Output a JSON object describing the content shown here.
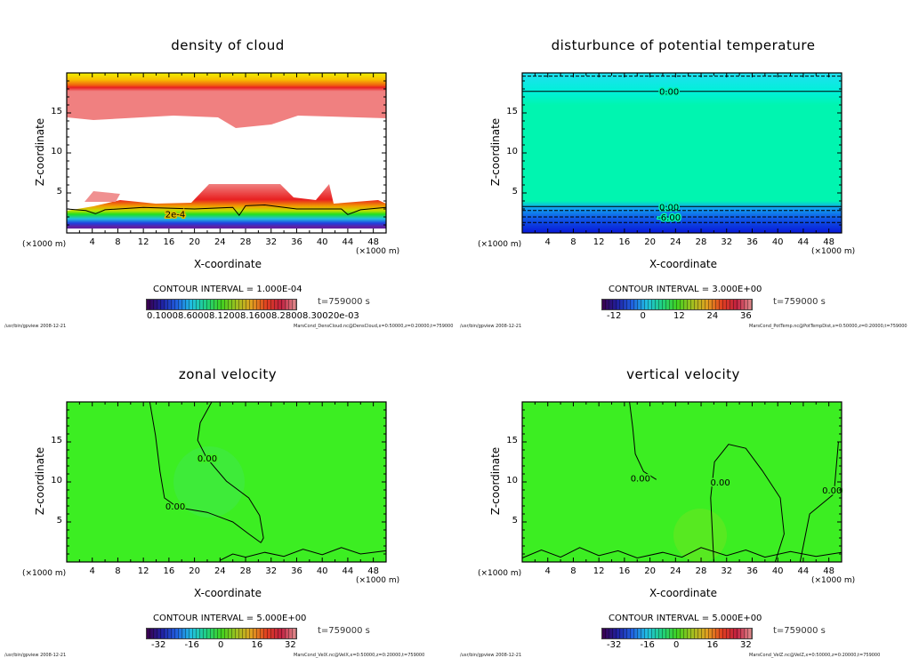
{
  "common": {
    "ylabel": "Z-coordinate",
    "xlabel": "X-coordinate",
    "xunit": "(×1000 m)",
    "time": "t=759000 s",
    "footer_left": "/usr/bin/gpview  2008-12-21",
    "xticks": [
      "4",
      "8",
      "12",
      "16",
      "20",
      "24",
      "28",
      "32",
      "36",
      "40",
      "44",
      "48"
    ],
    "yticks": [
      "5",
      "10",
      "15"
    ]
  },
  "chart_data": [
    {
      "type": "heatmap",
      "title": "density of cloud",
      "xlabel": "X-coordinate",
      "ylabel": "Z-coordinate",
      "xlim": [
        0,
        50
      ],
      "ylim": [
        0,
        20
      ],
      "contour_interval": "CONTOUR INTERVAL = 1.000E-04",
      "colorbar_labels": [
        "0.10008.60008.12008.16008.28008.30020e-03"
      ],
      "footer_right": "MarsCond_DensCloud.nc@DensCloud,x=0:50000,z=0:20000,t=759000",
      "contours": [
        {
          "label": "2e-4",
          "label_at": [
            17,
            2.4
          ],
          "points": [
            [
              0,
              3
            ],
            [
              3,
              2.8
            ],
            [
              4.5,
              2.4
            ],
            [
              6,
              2.9
            ],
            [
              12,
              3.2
            ],
            [
              20,
              3.0
            ],
            [
              26,
              3.2
            ],
            [
              27,
              2.2
            ],
            [
              28,
              3.4
            ],
            [
              31,
              3.5
            ],
            [
              36,
              3.0
            ],
            [
              43,
              3.0
            ],
            [
              44,
              2.3
            ],
            [
              46,
              2.9
            ],
            [
              50,
              3.2
            ]
          ]
        }
      ]
    },
    {
      "type": "heatmap",
      "title": "disturbunce of potential temperature",
      "xlabel": "X-coordinate",
      "ylabel": "Z-coordinate",
      "xlim": [
        0,
        50
      ],
      "ylim": [
        0,
        20
      ],
      "contour_interval": "CONTOUR INTERVAL = 3.000E+00",
      "colorbar_labels": [
        "-12",
        "0",
        "12",
        "24",
        "36"
      ],
      "footer_right": "MarsCond_PotTemp.nc@PotTempDist,x=0:50000,z=0:20000,t=759000",
      "contours": [
        {
          "label": "0.00",
          "label_at": [
            23,
            17.7
          ],
          "points": [
            [
              0,
              17.7
            ],
            [
              50,
              17.7
            ]
          ]
        },
        {
          "label": "0.00",
          "label_at": [
            23,
            3.3
          ],
          "points": [
            [
              0,
              3.3
            ],
            [
              50,
              3.3
            ]
          ]
        },
        {
          "label": "-6.00",
          "label_at": [
            23,
            2.0
          ],
          "dashed": true,
          "points": [
            [
              0,
              2.0
            ],
            [
              50,
              2.0
            ]
          ]
        },
        {
          "label": "",
          "dashed": true,
          "points": [
            [
              0,
              2.8
            ],
            [
              50,
              2.8
            ]
          ]
        },
        {
          "label": "",
          "dashed": true,
          "points": [
            [
              0,
              1.3
            ],
            [
              50,
              1.3
            ]
          ]
        },
        {
          "label": "",
          "dashed": true,
          "points": [
            [
              0,
              19.6
            ],
            [
              50,
              19.6
            ]
          ]
        }
      ]
    },
    {
      "type": "heatmap",
      "title": "zonal velocity",
      "xlabel": "X-coordinate",
      "ylabel": "Z-coordinate",
      "xlim": [
        0,
        50
      ],
      "ylim": [
        0,
        20
      ],
      "contour_interval": "CONTOUR INTERVAL = 5.000E+00",
      "colorbar_labels": [
        "-32",
        "-16",
        "0",
        "16",
        "32"
      ],
      "footer_right": "MarsCond_VelX.nc@VelX,x=0:50000,z=0:20000,t=759000",
      "contours": [
        {
          "label": "0.00",
          "label_at": [
            22,
            13
          ],
          "points": [
            [
              22.7,
              20
            ],
            [
              20.9,
              17.4
            ],
            [
              20.5,
              15.2
            ],
            [
              21.9,
              13
            ],
            [
              25,
              10.1
            ],
            [
              28.5,
              8
            ],
            [
              30.2,
              5.8
            ],
            [
              30.8,
              3
            ],
            [
              30.4,
              2.4
            ]
          ]
        },
        {
          "label": "0.00",
          "label_at": [
            17,
            7
          ],
          "points": [
            [
              13,
              20
            ],
            [
              13.9,
              15.8
            ],
            [
              14.6,
              11.3
            ],
            [
              15.3,
              8
            ],
            [
              17.4,
              6.8
            ],
            [
              22,
              6.2
            ],
            [
              26,
              5
            ],
            [
              28.5,
              3.5
            ],
            [
              30.4,
              2.4
            ]
          ]
        },
        {
          "label": "",
          "points": [
            [
              24,
              0.2
            ],
            [
              26,
              1
            ],
            [
              28,
              0.6
            ],
            [
              31,
              1.2
            ],
            [
              34,
              0.7
            ],
            [
              37,
              1.6
            ],
            [
              40,
              0.9
            ],
            [
              43,
              1.8
            ],
            [
              46,
              1.0
            ],
            [
              50,
              1.4
            ]
          ]
        }
      ]
    },
    {
      "type": "heatmap",
      "title": "vertical velocity",
      "xlabel": "X-coordinate",
      "ylabel": "Z-coordinate",
      "xlim": [
        0,
        50
      ],
      "ylim": [
        0,
        20
      ],
      "contour_interval": "CONTOUR INTERVAL = 5.000E+00",
      "colorbar_labels": [
        "-32",
        "-16",
        "0",
        "16",
        "32"
      ],
      "footer_right": "MarsCond_VelZ.nc@VelZ,x=0:50000,z=0:20000,t=759000",
      "contours": [
        {
          "label": "0.00",
          "label_at": [
            18.5,
            10.5
          ],
          "points": [
            [
              16.8,
              20
            ],
            [
              17.3,
              16.8
            ],
            [
              17.7,
              13.5
            ],
            [
              19,
              11.3
            ],
            [
              21,
              10.3
            ]
          ]
        },
        {
          "label": "0.00",
          "label_at": [
            31,
            10
          ],
          "points": [
            [
              30,
              0
            ],
            [
              29.5,
              8
            ],
            [
              30.1,
              12.5
            ],
            [
              32.3,
              14.7
            ],
            [
              35,
              14.2
            ],
            [
              37.6,
              11.4
            ],
            [
              40.4,
              8
            ],
            [
              41,
              3.5
            ],
            [
              39.6,
              0
            ]
          ]
        },
        {
          "label": "0.00",
          "label_at": [
            48.5,
            9
          ],
          "points": [
            [
              49.5,
              15
            ],
            [
              48.8,
              8.5
            ],
            [
              45,
              6
            ],
            [
              43.5,
              0
            ]
          ]
        },
        {
          "label": "",
          "points": [
            [
              0,
              0.5
            ],
            [
              3,
              1.5
            ],
            [
              6,
              0.6
            ],
            [
              9,
              1.8
            ],
            [
              12,
              0.8
            ],
            [
              15,
              1.4
            ],
            [
              18,
              0.5
            ],
            [
              22,
              1.2
            ],
            [
              25,
              0.6
            ],
            [
              28,
              1.8
            ],
            [
              32,
              0.8
            ],
            [
              35,
              1.5
            ],
            [
              38,
              0.6
            ],
            [
              42,
              1.3
            ],
            [
              46,
              0.7
            ],
            [
              50,
              1.2
            ]
          ]
        }
      ]
    }
  ]
}
